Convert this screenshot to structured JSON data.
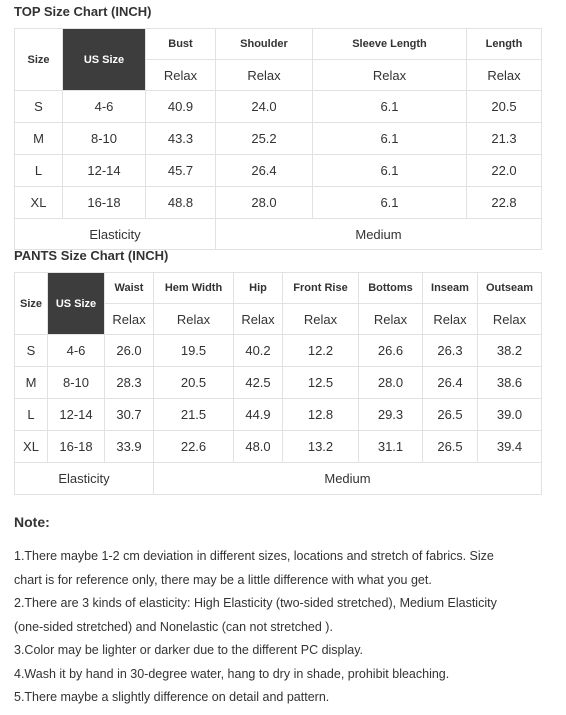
{
  "top_chart": {
    "title": "TOP Size Chart (INCH)",
    "headers": [
      "Size",
      "US Size",
      "Bust",
      "Shoulder",
      "Sleeve Length",
      "Length"
    ],
    "subheaders": [
      "Relax",
      "Relax",
      "Relax",
      "Relax"
    ],
    "rows": [
      [
        "S",
        "4-6",
        "40.9",
        "24.0",
        "6.1",
        "20.5"
      ],
      [
        "M",
        "8-10",
        "43.3",
        "25.2",
        "6.1",
        "21.3"
      ],
      [
        "L",
        "12-14",
        "45.7",
        "26.4",
        "6.1",
        "22.0"
      ],
      [
        "XL",
        "16-18",
        "48.8",
        "28.0",
        "6.1",
        "22.8"
      ]
    ],
    "footer": {
      "label": "Elasticity",
      "value": "Medium"
    }
  },
  "pants_chart": {
    "title": "PANTS Size Chart (INCH)",
    "headers": [
      "Size",
      "US Size",
      "Waist",
      "Hem Width",
      "Hip",
      "Front Rise",
      "Bottoms",
      "Inseam",
      "Outseam"
    ],
    "subheaders": [
      "Relax",
      "Relax",
      "Relax",
      "Relax",
      "Relax",
      "Relax",
      "Relax"
    ],
    "rows": [
      [
        "S",
        "4-6",
        "26.0",
        "19.5",
        "40.2",
        "12.2",
        "26.6",
        "26.3",
        "38.2"
      ],
      [
        "M",
        "8-10",
        "28.3",
        "20.5",
        "42.5",
        "12.5",
        "28.0",
        "26.4",
        "38.6"
      ],
      [
        "L",
        "12-14",
        "30.7",
        "21.5",
        "44.9",
        "12.8",
        "29.3",
        "26.5",
        "39.0"
      ],
      [
        "XL",
        "16-18",
        "33.9",
        "22.6",
        "48.0",
        "13.2",
        "31.1",
        "26.5",
        "39.4"
      ]
    ],
    "footer": {
      "label": "Elasticity",
      "value": "Medium"
    }
  },
  "notes": {
    "title": "Note:",
    "lines": [
      "1.There maybe 1-2 cm deviation in different sizes, locations and stretch of fabrics. Size",
      "chart is for reference only, there may be a little difference with what you get.",
      "2.There are 3 kinds of elasticity: High Elasticity (two-sided stretched), Medium Elasticity",
      "(one-sided stretched) and Nonelastic (can not stretched ).",
      "3.Color may be lighter or darker due to the different PC display.",
      "4.Wash it by hand in 30-degree water, hang to dry in shade, prohibit bleaching.",
      "5.There maybe a slightly difference on detail and pattern."
    ]
  },
  "colors": {
    "us_size_header_bg": "#3d3d3d",
    "border": "#e2e2e2",
    "text": "#333333"
  }
}
